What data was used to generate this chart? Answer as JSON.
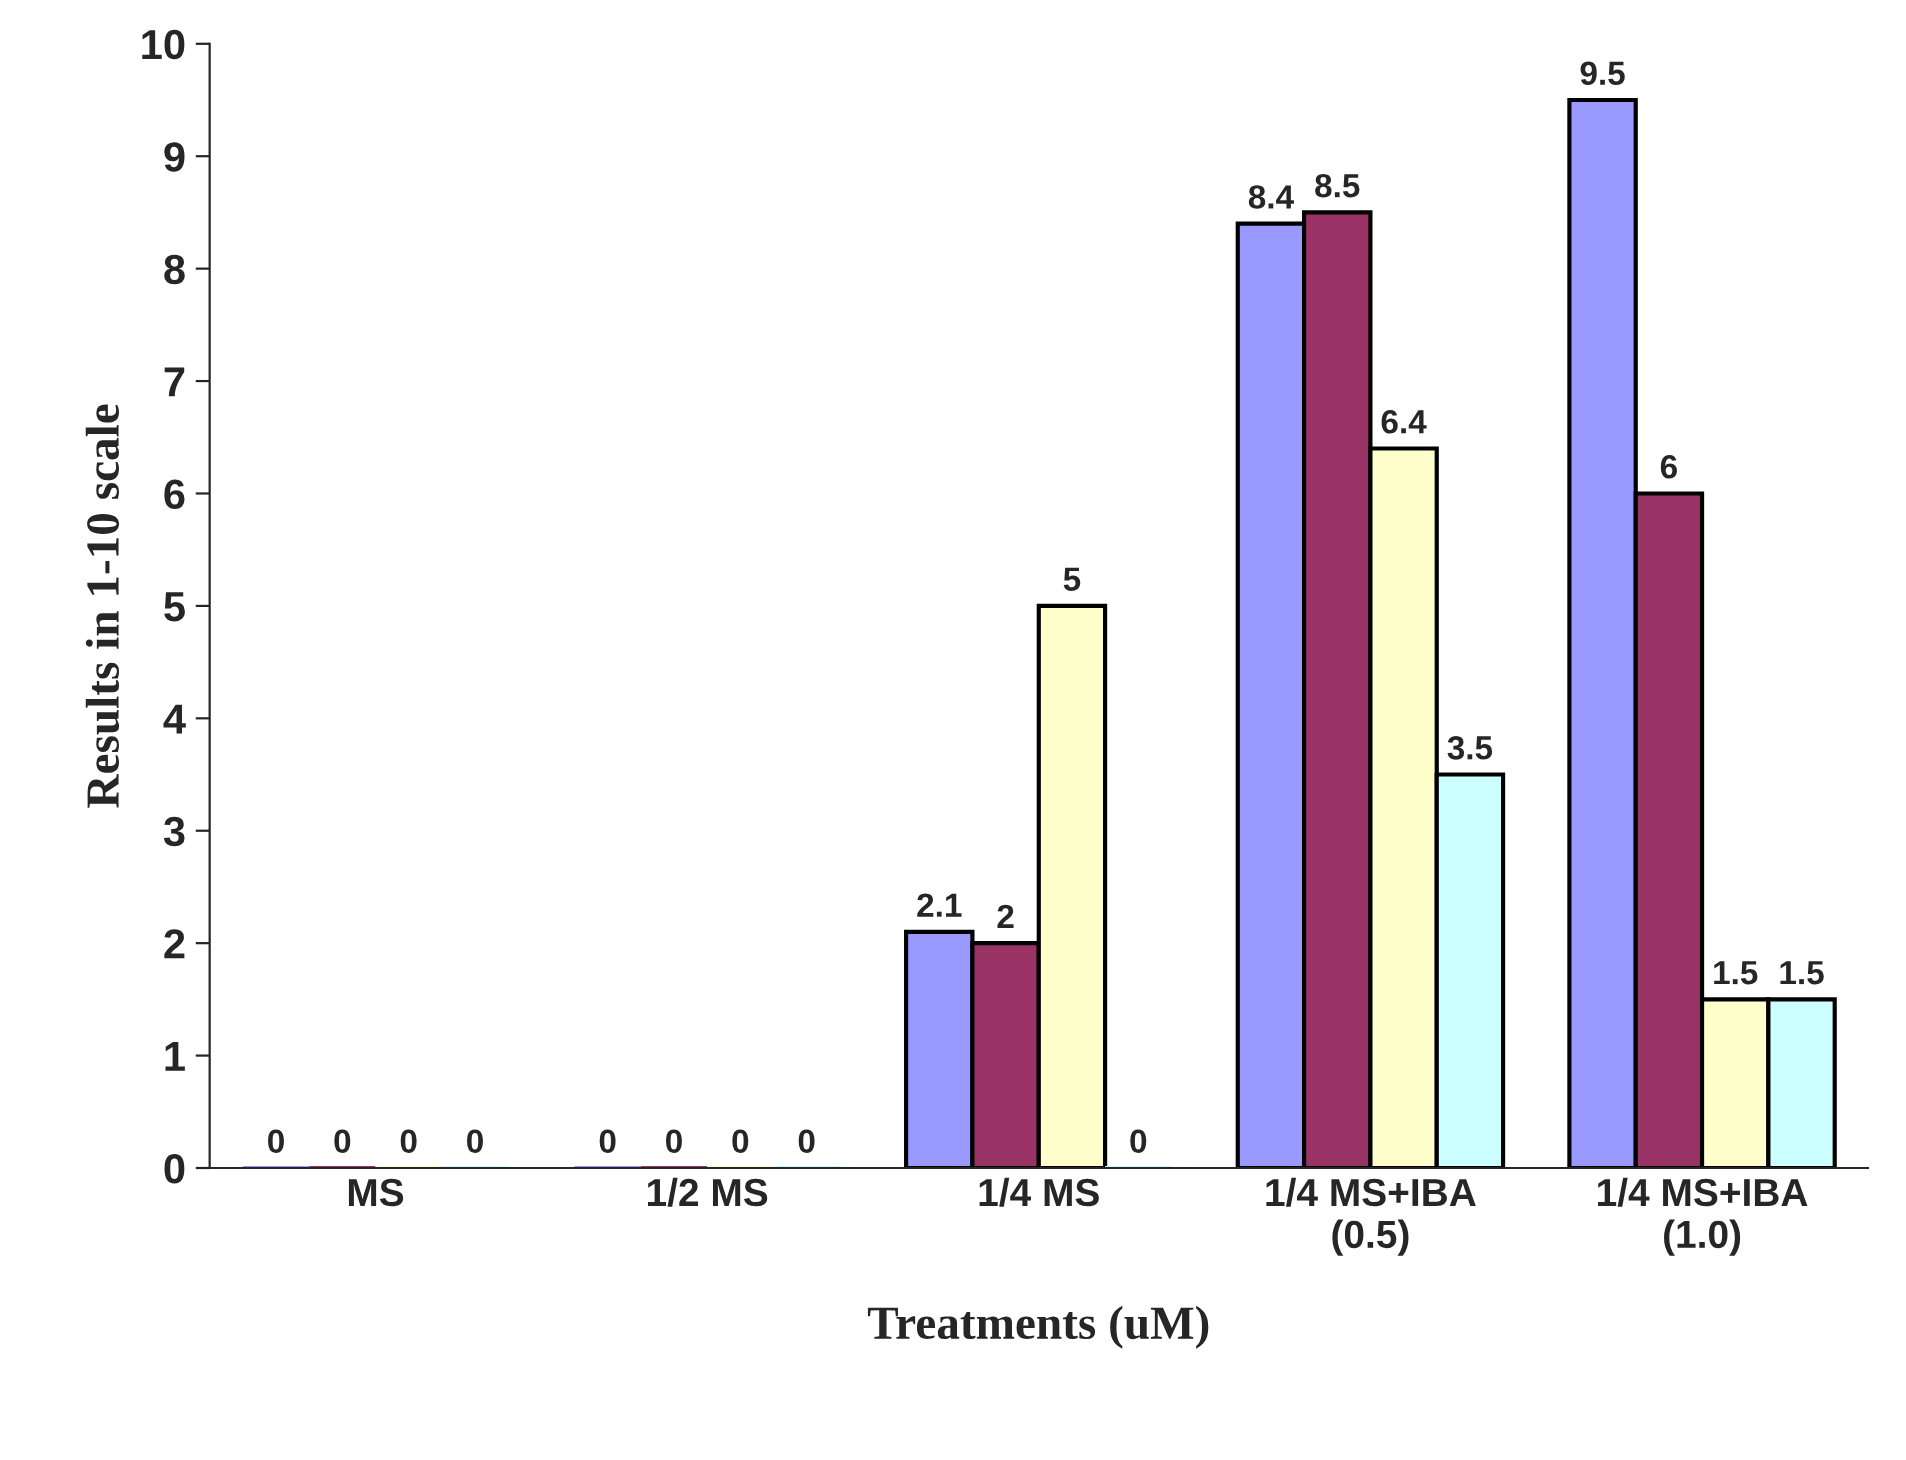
{
  "chart_data": {
    "type": "bar",
    "xlabel": "Treatments (uM)",
    "ylabel": "Results in 1-10 scale",
    "categories": [
      "MS",
      "1/2 MS",
      "1/4 MS",
      "1/4 MS+IBA\n(0.5)",
      "1/4 MS+IBA\n(1.0)"
    ],
    "series": [
      {
        "color": "#9999ff",
        "values": [
          0,
          0,
          2.1,
          8.4,
          9.5
        ]
      },
      {
        "color": "#993366",
        "values": [
          0,
          0,
          2,
          8.5,
          6
        ]
      },
      {
        "color": "#ffffcc",
        "values": [
          0,
          0,
          5,
          6.4,
          1.5
        ]
      },
      {
        "color": "#ccffff",
        "values": [
          0,
          0,
          0,
          3.5,
          1.5
        ]
      }
    ],
    "ylim": [
      0,
      10
    ],
    "yticks": [
      0,
      1,
      2,
      3,
      4,
      5,
      6,
      7,
      8,
      9,
      10
    ],
    "data_labels": true,
    "grid": false,
    "legend": false
  }
}
